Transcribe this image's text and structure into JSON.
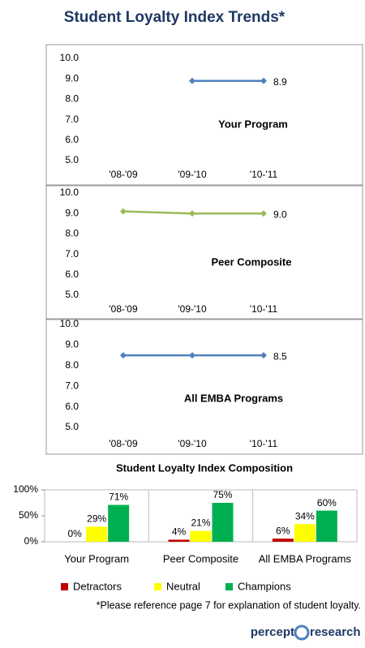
{
  "title": "Student Loyalty Index Trends*",
  "chart_data": [
    {
      "type": "line",
      "categories": [
        "'08-'09",
        "'09-'10",
        "'10-'11"
      ],
      "series": [
        {
          "name": "Your Program",
          "color": "#4f81bd",
          "values": [
            null,
            8.9,
            8.9
          ],
          "value_labels": [
            null,
            null,
            "8.9"
          ]
        }
      ],
      "ylim": [
        5,
        10
      ],
      "yticks": [
        {
          "value": 5,
          "label": "5.0"
        },
        {
          "value": 6,
          "label": "6.0"
        },
        {
          "value": 7,
          "label": "7.0"
        },
        {
          "value": 8,
          "label": "8.0"
        },
        {
          "value": 9,
          "label": "9.0"
        },
        {
          "value": 10,
          "label": "10.0"
        }
      ]
    },
    {
      "type": "line",
      "categories": [
        "'08-'09",
        "'09-'10",
        "'10-'11"
      ],
      "series": [
        {
          "name": "Peer Composite",
          "color": "#9bbb59",
          "values": [
            9.1,
            9.0,
            9.0
          ],
          "value_labels": [
            null,
            null,
            "9.0"
          ]
        }
      ],
      "ylim": [
        5,
        10
      ],
      "yticks": [
        {
          "value": 5,
          "label": "5.0"
        },
        {
          "value": 6,
          "label": "6.0"
        },
        {
          "value": 7,
          "label": "7.0"
        },
        {
          "value": 8,
          "label": "8.0"
        },
        {
          "value": 9,
          "label": "9.0"
        },
        {
          "value": 10,
          "label": "10.0"
        }
      ]
    },
    {
      "type": "line",
      "categories": [
        "'08-'09",
        "'09-'10",
        "'10-'11"
      ],
      "series": [
        {
          "name": "All EMBA Programs",
          "color": "#4f81bd",
          "values": [
            8.5,
            8.5,
            8.5
          ],
          "value_labels": [
            null,
            null,
            "8.5"
          ]
        }
      ],
      "ylim": [
        5,
        10
      ],
      "yticks": [
        {
          "value": 5,
          "label": "5.0"
        },
        {
          "value": 6,
          "label": "6.0"
        },
        {
          "value": 7,
          "label": "7.0"
        },
        {
          "value": 8,
          "label": "8.0"
        },
        {
          "value": 9,
          "label": "9.0"
        },
        {
          "value": 10,
          "label": "10.0"
        }
      ]
    },
    {
      "type": "bar",
      "title": "Student Loyalty Index Composition",
      "categories": [
        "Your Program",
        "Peer Composite",
        "All EMBA Programs"
      ],
      "series": [
        {
          "name": "Detractors",
          "color": "#c00000",
          "values": [
            0,
            4,
            6
          ],
          "value_labels": [
            "0%",
            "4%",
            "6%"
          ]
        },
        {
          "name": "Neutral",
          "color": "#ffff00",
          "values": [
            29,
            21,
            34
          ],
          "value_labels": [
            "29%",
            "21%",
            "34%"
          ]
        },
        {
          "name": "Champions",
          "color": "#00b050",
          "values": [
            71,
            75,
            60
          ],
          "value_labels": [
            "71%",
            "75%",
            "60%"
          ]
        }
      ],
      "ylim": [
        0,
        100
      ],
      "yticks": [
        {
          "value": 0,
          "label": "0%"
        },
        {
          "value": 50,
          "label": "50%"
        },
        {
          "value": 100,
          "label": "100%"
        }
      ]
    }
  ],
  "footnote": "*Please reference page 7 for explanation of student loyalty.",
  "logo": [
    "percept",
    "research"
  ]
}
